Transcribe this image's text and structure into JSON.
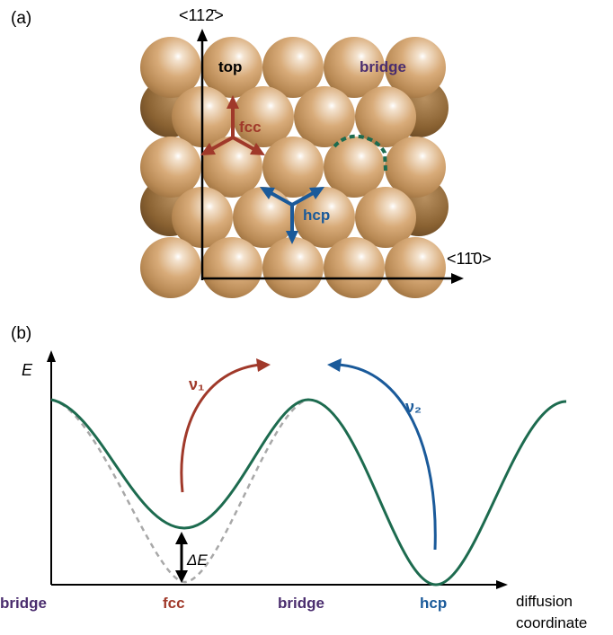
{
  "panel_a": {
    "label": "(a)",
    "y_axis_label": "<112̄>",
    "x_axis_label": "<11̄0>",
    "site_labels": {
      "top": "top",
      "bridge": "bridge",
      "fcc": "fcc",
      "hcp": "hcp"
    }
  },
  "panel_b": {
    "label": "(b)",
    "y_axis_label": "E",
    "delta_label": "ΔE",
    "nu1": "ν₁",
    "nu2": "ν₂",
    "x_labels": [
      "bridge",
      "fcc",
      "bridge",
      "hcp"
    ],
    "x_axis_title_line1": "diffusion",
    "x_axis_title_line2": "coordinate"
  },
  "colors": {
    "fcc": "#a0392a",
    "hcp": "#1a5a9a",
    "bridge": "#4a2d6e",
    "curve": "#1d6b4f",
    "dashed": "#a8a8a8",
    "atom": "#d6a878",
    "atom_dark": "#8a6232"
  }
}
